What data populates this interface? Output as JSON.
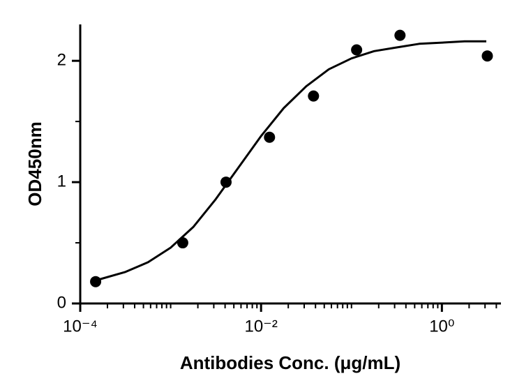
{
  "chart_data": {
    "type": "scatter",
    "xlabel": "Antibodies Conc. (μg/mL)",
    "ylabel": "OD450nm",
    "xscale": "log",
    "color": "#000000",
    "points": {
      "x": [
        0.000148,
        0.00136,
        0.0041,
        0.0124,
        0.038,
        0.114,
        0.344,
        3.18
      ],
      "values": [
        0.18,
        0.5,
        1.0,
        1.37,
        1.71,
        2.09,
        2.21,
        2.04
      ]
    },
    "curve": {
      "x": [
        0.000148,
        0.000316,
        0.000562,
        0.001,
        0.00178,
        0.00316,
        0.00562,
        0.01,
        0.0178,
        0.0316,
        0.0562,
        0.1,
        0.178,
        0.316,
        0.562,
        1,
        1.78,
        3.1
      ],
      "values": [
        0.19,
        0.26,
        0.34,
        0.46,
        0.63,
        0.86,
        1.12,
        1.38,
        1.61,
        1.79,
        1.93,
        2.02,
        2.08,
        2.11,
        2.14,
        2.15,
        2.16,
        2.16
      ]
    },
    "xlim": [
      0.0001,
      4.5
    ],
    "xticks": [
      {
        "value": 0.0001,
        "label": "10⁻⁴"
      },
      {
        "value": 0.01,
        "label": "10⁻²"
      },
      {
        "value": 1,
        "label": "10⁰"
      }
    ],
    "xminor_ticks": [
      0.0002,
      0.0003,
      0.0004,
      0.0005,
      0.0006,
      0.0007,
      0.0008,
      0.0009,
      0.001,
      0.002,
      0.003,
      0.004,
      0.005,
      0.006,
      0.007,
      0.008,
      0.009,
      0.02,
      0.03,
      0.04,
      0.05,
      0.06,
      0.07,
      0.08,
      0.09,
      0.1,
      0.2,
      0.3,
      0.4,
      0.5,
      0.6,
      0.7,
      0.8,
      0.9,
      2,
      3,
      4
    ],
    "ylim": [
      0,
      2.3
    ],
    "yticks": [
      0,
      1,
      2
    ],
    "yminor_ticks": [
      0.5,
      1.5
    ]
  }
}
